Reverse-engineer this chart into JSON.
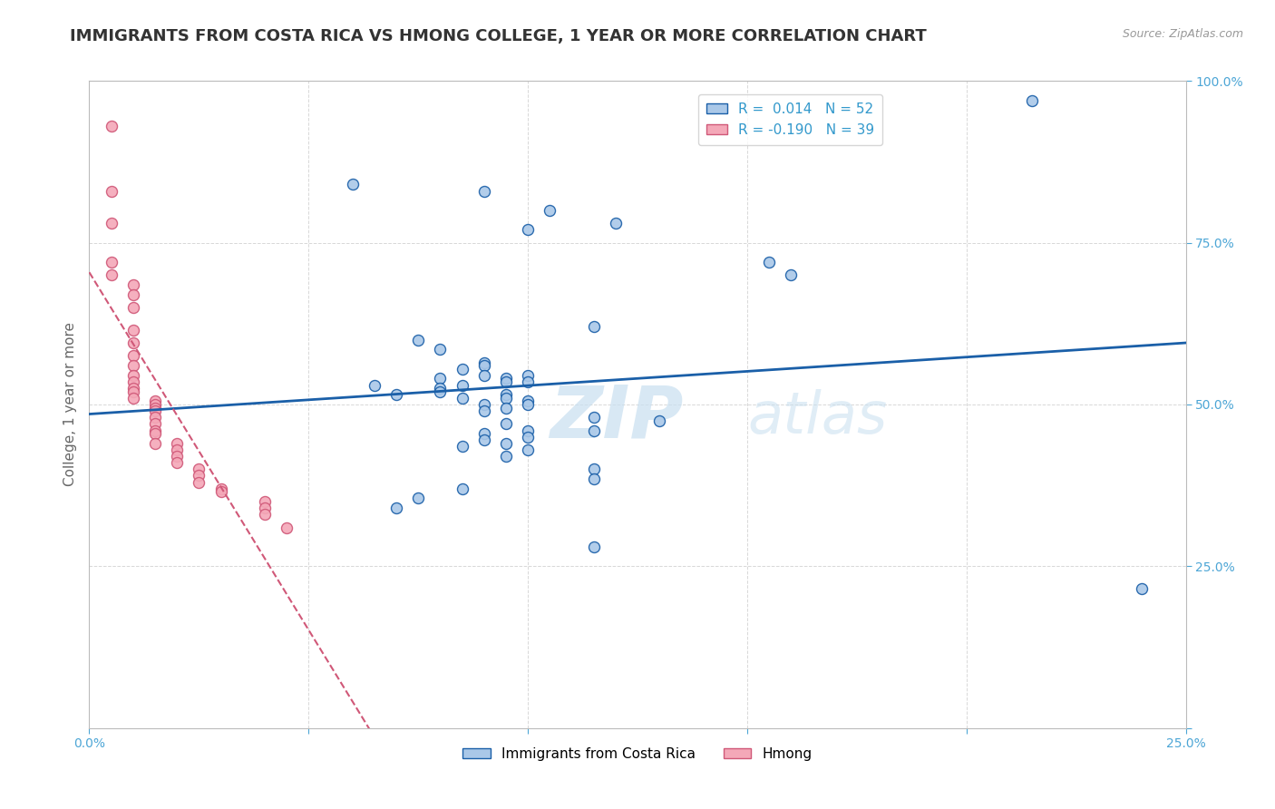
{
  "title": "IMMIGRANTS FROM COSTA RICA VS HMONG COLLEGE, 1 YEAR OR MORE CORRELATION CHART",
  "source_text": "Source: ZipAtlas.com",
  "ylabel": "College, 1 year or more",
  "xlim": [
    0.0,
    0.25
  ],
  "ylim": [
    0.0,
    1.0
  ],
  "r_blue": 0.014,
  "n_blue": 52,
  "r_pink": -0.19,
  "n_pink": 39,
  "blue_color": "#aac8e8",
  "pink_color": "#f4a8b8",
  "blue_line_color": "#1a5fa8",
  "pink_line_color": "#d05878",
  "legend_blue_label": "Immigrants from Costa Rica",
  "legend_pink_label": "Hmong",
  "watermark_zip": "ZIP",
  "watermark_atlas": "atlas",
  "background_color": "#ffffff",
  "grid_color": "#d8d8d8",
  "tick_color": "#4da6d6",
  "title_fontsize": 13,
  "axis_fontsize": 11,
  "tick_fontsize": 10,
  "marker_size": 75,
  "blue_x": [
    0.215,
    0.06,
    0.09,
    0.105,
    0.12,
    0.1,
    0.155,
    0.16,
    0.115,
    0.075,
    0.08,
    0.09,
    0.09,
    0.085,
    0.1,
    0.09,
    0.08,
    0.095,
    0.095,
    0.1,
    0.065,
    0.085,
    0.08,
    0.08,
    0.07,
    0.095,
    0.085,
    0.095,
    0.1,
    0.09,
    0.1,
    0.095,
    0.09,
    0.115,
    0.13,
    0.095,
    0.1,
    0.115,
    0.09,
    0.1,
    0.09,
    0.095,
    0.085,
    0.1,
    0.095,
    0.115,
    0.115,
    0.085,
    0.075,
    0.07,
    0.115,
    0.24
  ],
  "blue_y": [
    0.97,
    0.84,
    0.83,
    0.8,
    0.78,
    0.77,
    0.72,
    0.7,
    0.62,
    0.6,
    0.585,
    0.565,
    0.56,
    0.555,
    0.545,
    0.545,
    0.54,
    0.54,
    0.535,
    0.535,
    0.53,
    0.53,
    0.525,
    0.52,
    0.515,
    0.515,
    0.51,
    0.51,
    0.505,
    0.5,
    0.5,
    0.495,
    0.49,
    0.48,
    0.475,
    0.47,
    0.46,
    0.46,
    0.455,
    0.45,
    0.445,
    0.44,
    0.435,
    0.43,
    0.42,
    0.4,
    0.385,
    0.37,
    0.355,
    0.34,
    0.28,
    0.215
  ],
  "pink_x": [
    0.005,
    0.005,
    0.005,
    0.005,
    0.005,
    0.01,
    0.01,
    0.01,
    0.01,
    0.01,
    0.01,
    0.01,
    0.01,
    0.01,
    0.01,
    0.01,
    0.01,
    0.015,
    0.015,
    0.015,
    0.015,
    0.015,
    0.015,
    0.015,
    0.015,
    0.015,
    0.02,
    0.02,
    0.02,
    0.02,
    0.025,
    0.025,
    0.025,
    0.03,
    0.03,
    0.04,
    0.04,
    0.04,
    0.045
  ],
  "pink_y": [
    0.93,
    0.83,
    0.78,
    0.72,
    0.7,
    0.685,
    0.67,
    0.65,
    0.615,
    0.595,
    0.575,
    0.56,
    0.545,
    0.535,
    0.525,
    0.52,
    0.51,
    0.505,
    0.5,
    0.495,
    0.49,
    0.48,
    0.47,
    0.46,
    0.455,
    0.44,
    0.44,
    0.43,
    0.42,
    0.41,
    0.4,
    0.39,
    0.38,
    0.37,
    0.365,
    0.35,
    0.34,
    0.33,
    0.31
  ]
}
